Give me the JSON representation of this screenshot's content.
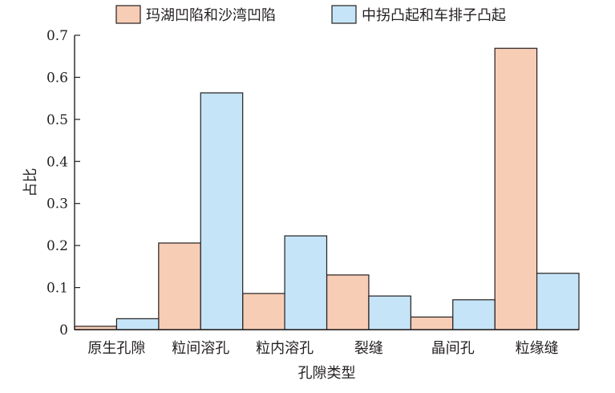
{
  "chart_data": {
    "type": "bar",
    "categories": [
      "原生孔隙",
      "粒间溶孔",
      "粒内溶孔",
      "裂缝",
      "晶间孔",
      "粒缘缝"
    ],
    "series": [
      {
        "name": "玛湖凹陷和沙湾凹陷",
        "color": "#f8cdb5",
        "values": [
          0.008,
          0.206,
          0.086,
          0.13,
          0.03,
          0.669
        ]
      },
      {
        "name": "中拐凸起和车排子凸起",
        "color": "#c5e4f7",
        "values": [
          0.026,
          0.563,
          0.223,
          0.08,
          0.071,
          0.134
        ]
      }
    ],
    "xlabel": "孔隙类型",
    "ylabel": "占比",
    "ylim": [
      0,
      0.7
    ],
    "yticks": [
      "0",
      "0.1",
      "0.2",
      "0.3",
      "0.4",
      "0.5",
      "0.6",
      "0.7"
    ],
    "grid": false,
    "legend_position": "top"
  }
}
